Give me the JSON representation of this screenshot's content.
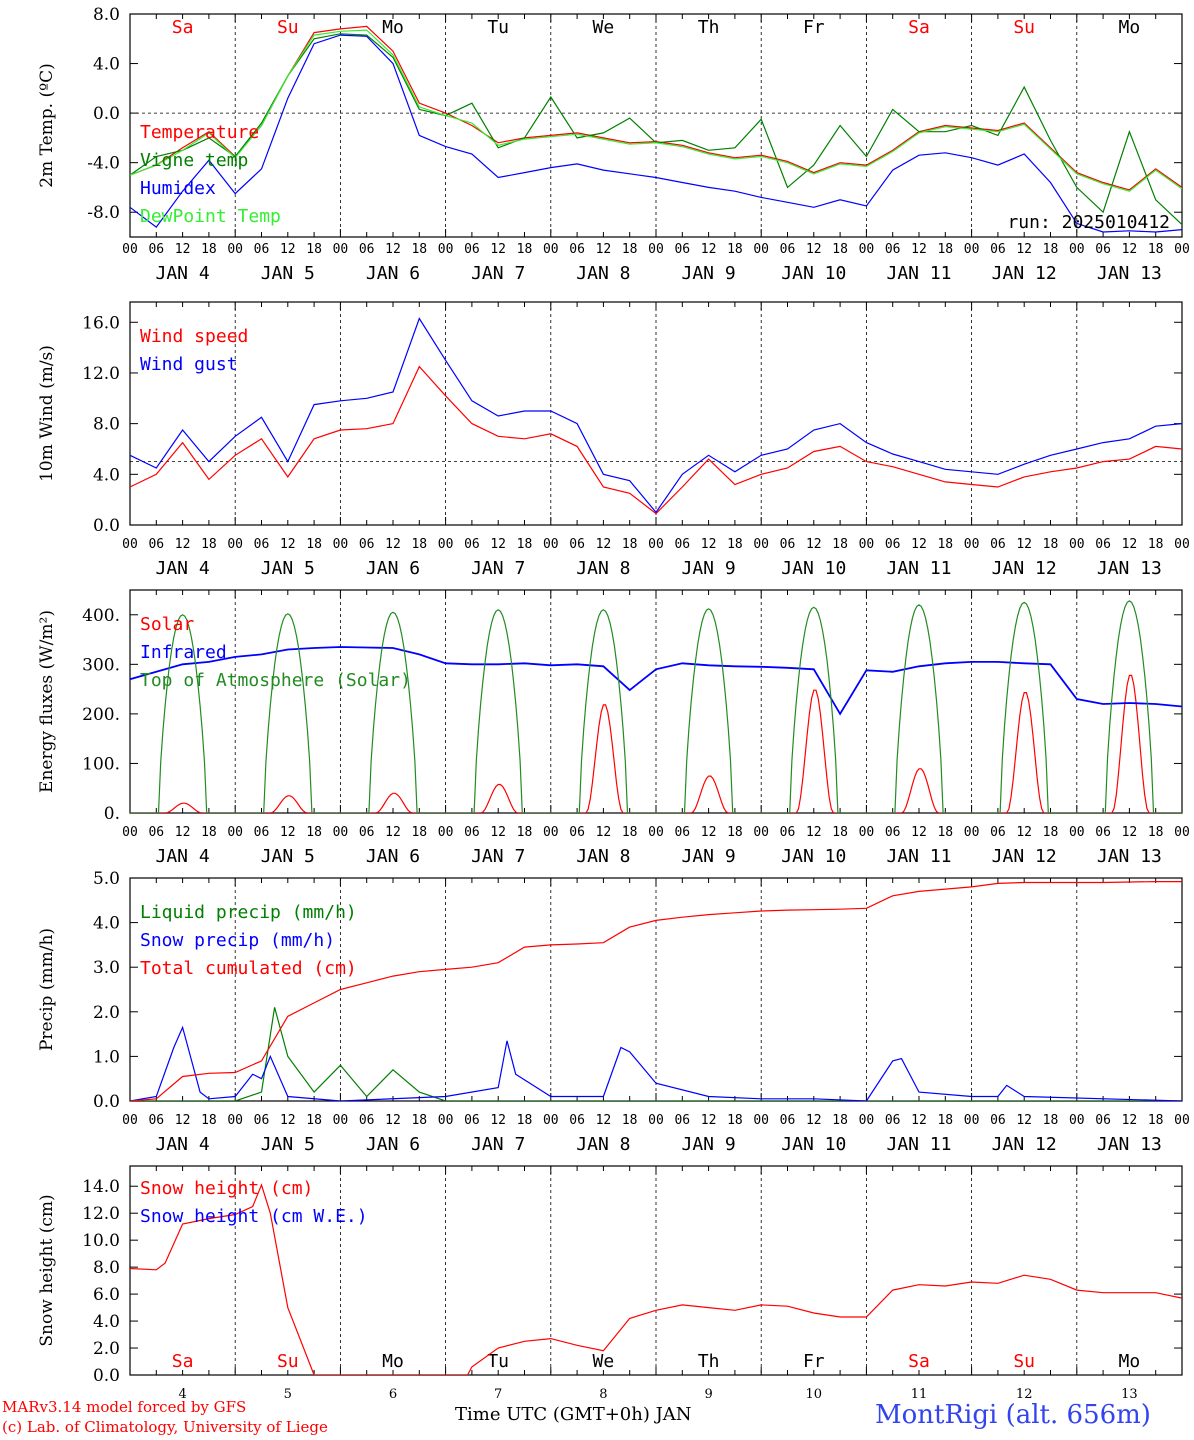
{
  "hour_ticks": [
    "00",
    "06",
    "12",
    "18"
  ],
  "end_tick": "00",
  "footer": {
    "model": "MARv3.14 model forced by GFS",
    "credit": "(c) Lab. of Climatology, University of Liege",
    "xlabel": "Time UTC (GMT+0h) JAN",
    "station": "MontRigi (alt. 656m)"
  },
  "colors": {
    "red": "#ff0000",
    "blue": "#0000ff",
    "green": "#008000",
    "lime": "#33ee33",
    "darkgreen": "#228b22"
  },
  "chart_data": [
    {
      "type": "line",
      "ylabel": "2m Temp. (ºC)",
      "ylim": [
        -10,
        8
      ],
      "yticks": [
        "8.0",
        "4.0",
        "0.0",
        "-4.0",
        "-8.0"
      ],
      "ytick_values": [
        8,
        4,
        0,
        -4,
        -8
      ],
      "ref_line": 0,
      "day_labels": [
        "JAN  4",
        "JAN  5",
        "JAN  6",
        "JAN  7",
        "JAN  8",
        "JAN  9",
        "JAN 10",
        "JAN 11",
        "JAN 12",
        "JAN 13"
      ],
      "weekdays": [
        "Sa",
        "Su",
        "Mo",
        "Tu",
        "We",
        "Th",
        "Fr",
        "Sa",
        "Su",
        "Mo"
      ],
      "weekday_colors": [
        "red",
        "red",
        "black",
        "black",
        "black",
        "black",
        "black",
        "red",
        "red",
        "black"
      ],
      "annotation": "run: 2025010412",
      "x_hours": [
        0,
        6,
        12,
        18,
        24,
        30,
        36,
        42,
        48,
        54,
        60,
        66,
        72,
        78,
        84,
        90,
        96,
        102,
        108,
        114,
        120,
        126,
        132,
        138,
        144,
        150,
        156,
        162,
        168,
        174,
        180,
        186,
        192,
        198,
        204,
        210,
        216,
        222,
        228,
        234,
        240
      ],
      "series": [
        {
          "name": "Temperature",
          "color": "red",
          "values": [
            -5,
            -4.2,
            -2.8,
            -1.5,
            -3.5,
            -1,
            3,
            6.5,
            6.8,
            7,
            5,
            0.8,
            0,
            -1,
            -2.4,
            -2,
            -1.8,
            -1.6,
            -2,
            -2.4,
            -2.3,
            -2.6,
            -3.2,
            -3.6,
            -3.4,
            -3.9,
            -4.8,
            -4,
            -4.2,
            -3,
            -1.5,
            -1,
            -1.2,
            -1.4,
            -0.8,
            -2.8,
            -4.8,
            -5.6,
            -6.2,
            -4.5,
            -6
          ]
        },
        {
          "name": "Vigne temp",
          "color": "green",
          "values": [
            -5,
            -3.5,
            -3,
            -2,
            -3.5,
            -0.8,
            3,
            6,
            6.4,
            6.3,
            4.5,
            0.3,
            -0.2,
            0.8,
            -2.8,
            -2,
            1.3,
            -2,
            -1.6,
            -0.4,
            -2.4,
            -2.2,
            -3,
            -2.8,
            -0.5,
            -6,
            -4.2,
            -1,
            -3.5,
            0.3,
            -1.5,
            -1.5,
            -1,
            -1.8,
            2.1,
            -2.2,
            -6,
            -8,
            -1.5,
            -7,
            -9
          ]
        },
        {
          "name": "Humidex",
          "color": "blue",
          "values": [
            -7.6,
            -9.2,
            -6.3,
            -3.8,
            -6.5,
            -4.5,
            1.2,
            5.6,
            6.3,
            6.2,
            4,
            -1.8,
            -2.7,
            -3.3,
            -5.2,
            -4.8,
            -4.4,
            -4.1,
            -4.6,
            -4.9,
            -5.2,
            -5.6,
            -6,
            -6.3,
            -6.8,
            -7.2,
            -7.6,
            -7,
            -7.5,
            -4.6,
            -3.4,
            -3.2,
            -3.6,
            -4.2,
            -3.3,
            -5.6,
            -8.9,
            -9.6,
            -9.5,
            -9.6,
            -9.4
          ]
        },
        {
          "name": "DewPoint Temp",
          "color": "lime",
          "values": [
            -5,
            -4.2,
            -3,
            -1.6,
            -3.6,
            -1,
            3,
            6.3,
            6.6,
            6.7,
            4.7,
            0.5,
            -0.2,
            -0.8,
            -2.6,
            -2.1,
            -1.9,
            -1.7,
            -2.1,
            -2.5,
            -2.4,
            -2.7,
            -3.3,
            -3.7,
            -3.5,
            -4,
            -4.9,
            -4.1,
            -4.3,
            -3.1,
            -1.6,
            -1.1,
            -1.3,
            -1.5,
            -0.9,
            -2.9,
            -4.9,
            -5.7,
            -6.3,
            -4.6,
            -6.1
          ]
        }
      ]
    },
    {
      "type": "line",
      "ylabel": "10m Wind (m/s)",
      "ylim": [
        0,
        17.6
      ],
      "yticks": [
        "16.0",
        "12.0",
        "8.0",
        "4.0",
        "0.0"
      ],
      "ytick_values": [
        16,
        12,
        8,
        4,
        0
      ],
      "ref_line": 5,
      "day_labels": [
        "JAN  4",
        "JAN  5",
        "JAN  6",
        "JAN  7",
        "JAN  8",
        "JAN  9",
        "JAN 10",
        "JAN 11",
        "JAN 12",
        "JAN 13"
      ],
      "x_hours": [
        0,
        6,
        12,
        18,
        24,
        30,
        36,
        42,
        48,
        54,
        60,
        66,
        72,
        78,
        84,
        90,
        96,
        102,
        108,
        114,
        120,
        126,
        132,
        138,
        144,
        150,
        156,
        162,
        168,
        174,
        180,
        186,
        192,
        198,
        204,
        210,
        216,
        222,
        228,
        234,
        240
      ],
      "series": [
        {
          "name": "Wind speed",
          "color": "red",
          "values": [
            3,
            4,
            6.5,
            3.6,
            5.5,
            6.8,
            3.8,
            6.8,
            7.5,
            7.6,
            8,
            12.5,
            10.2,
            8,
            7,
            6.8,
            7.2,
            6.2,
            3,
            2.5,
            0.9,
            3,
            5.2,
            3.2,
            4,
            4.5,
            5.8,
            6.2,
            5,
            4.6,
            4,
            3.4,
            3.2,
            3,
            3.8,
            4.2,
            4.5,
            5,
            5.2,
            6.2,
            6
          ]
        },
        {
          "name": "Wind gust",
          "color": "blue",
          "values": [
            5.5,
            4.5,
            7.5,
            5,
            7,
            8.5,
            5,
            9.5,
            9.8,
            10,
            10.5,
            16.3,
            13,
            9.8,
            8.6,
            9,
            9,
            8,
            4,
            3.5,
            1,
            4,
            5.5,
            4.2,
            5.5,
            6,
            7.5,
            8,
            6.5,
            5.6,
            5,
            4.4,
            4.2,
            4,
            4.8,
            5.5,
            6,
            6.5,
            6.8,
            7.8,
            8
          ]
        }
      ]
    },
    {
      "type": "line",
      "ylabel": "Energy fluxes (W/m²)",
      "ylim": [
        0,
        450
      ],
      "yticks": [
        "400.",
        "300.",
        "200.",
        "100.",
        "0."
      ],
      "ytick_values": [
        400,
        300,
        200,
        100,
        0
      ],
      "day_labels": [
        "JAN  4",
        "JAN  5",
        "JAN  6",
        "JAN  7",
        "JAN  8",
        "JAN  9",
        "JAN 10",
        "JAN 11",
        "JAN 12",
        "JAN 13"
      ],
      "series": [
        {
          "name": "Solar",
          "color": "red",
          "peaks": [
            20,
            35,
            40,
            58,
            220,
            75,
            250,
            90,
            245,
            280
          ]
        },
        {
          "name": "Infrared",
          "color": "blue",
          "x_hours": [
            0,
            6,
            12,
            18,
            24,
            30,
            36,
            42,
            48,
            54,
            60,
            66,
            72,
            78,
            84,
            90,
            96,
            102,
            108,
            114,
            120,
            126,
            132,
            138,
            144,
            150,
            156,
            162,
            168,
            174,
            180,
            186,
            192,
            198,
            204,
            210,
            216,
            222,
            228,
            234,
            240
          ],
          "values": [
            270,
            285,
            300,
            305,
            315,
            320,
            330,
            333,
            335,
            334,
            333,
            320,
            302,
            300,
            300,
            302,
            298,
            300,
            296,
            248,
            290,
            302,
            298,
            296,
            295,
            293,
            290,
            200,
            288,
            285,
            296,
            302,
            305,
            305,
            302,
            300,
            230,
            220,
            222,
            220,
            215
          ]
        },
        {
          "name": "Top of Atmosphere (Solar)",
          "color": "darkgreen",
          "peaks": [
            400,
            402,
            405,
            410,
            410,
            412,
            415,
            420,
            425,
            428
          ]
        }
      ]
    },
    {
      "type": "line",
      "ylabel": "Precip (mm/h)",
      "ylim": [
        0,
        5
      ],
      "yticks": [
        "5.0",
        "4.0",
        "3.0",
        "2.0",
        "1.0",
        "0.0"
      ],
      "ytick_values": [
        5,
        4,
        3,
        2,
        1,
        0
      ],
      "day_labels": [
        "JAN  4",
        "JAN  5",
        "JAN  6",
        "JAN  7",
        "JAN  8",
        "JAN  9",
        "JAN 10",
        "JAN 11",
        "JAN 12",
        "JAN 13"
      ],
      "series": [
        {
          "name": "Liquid precip (mm/h)",
          "color": "green",
          "x_hours": [
            0,
            6,
            12,
            18,
            24,
            30,
            33,
            36,
            42,
            48,
            54,
            60,
            66,
            72,
            78,
            84,
            90,
            240
          ],
          "values": [
            0,
            0,
            0,
            0,
            0,
            0.2,
            2.1,
            1,
            0.2,
            0.8,
            0.1,
            0.7,
            0.2,
            0,
            0,
            0,
            0,
            0
          ]
        },
        {
          "name": "Snow precip (mm/h)",
          "color": "blue",
          "x_hours": [
            0,
            6,
            10,
            12,
            16,
            18,
            24,
            28,
            30,
            32,
            36,
            48,
            72,
            84,
            86,
            88,
            96,
            108,
            112,
            114,
            120,
            132,
            144,
            156,
            168,
            174,
            176,
            180,
            192,
            198,
            200,
            204,
            240
          ],
          "values": [
            0,
            0.1,
            1.2,
            1.65,
            0.2,
            0.05,
            0.1,
            0.6,
            0.5,
            1,
            0.1,
            0,
            0.1,
            0.3,
            1.35,
            0.6,
            0.1,
            0.1,
            1.2,
            1.1,
            0.4,
            0.1,
            0.05,
            0.05,
            0,
            0.9,
            0.95,
            0.2,
            0.1,
            0.1,
            0.35,
            0.1,
            0
          ]
        },
        {
          "name": "Total cumulated (cm)",
          "color": "red",
          "x_hours": [
            0,
            6,
            12,
            18,
            24,
            30,
            36,
            42,
            48,
            54,
            60,
            66,
            72,
            78,
            84,
            90,
            96,
            102,
            108,
            114,
            120,
            126,
            132,
            138,
            144,
            150,
            156,
            162,
            168,
            174,
            180,
            186,
            192,
            198,
            204,
            210,
            216,
            222,
            228,
            234,
            240
          ],
          "values": [
            0,
            0.05,
            0.55,
            0.62,
            0.64,
            0.9,
            1.9,
            2.2,
            2.5,
            2.65,
            2.8,
            2.9,
            2.95,
            3,
            3.1,
            3.45,
            3.5,
            3.52,
            3.55,
            3.9,
            4.05,
            4.12,
            4.18,
            4.22,
            4.26,
            4.28,
            4.29,
            4.3,
            4.32,
            4.6,
            4.7,
            4.75,
            4.8,
            4.88,
            4.9,
            4.9,
            4.9,
            4.9,
            4.91,
            4.92,
            4.92
          ]
        }
      ]
    },
    {
      "type": "line",
      "ylabel": "Snow height (cm)",
      "ylim": [
        0,
        15.5
      ],
      "yticks": [
        "14.0",
        "12.0",
        "10.0",
        "8.0",
        "6.0",
        "4.0",
        "2.0",
        "0.0"
      ],
      "ytick_values": [
        14,
        12,
        10,
        8,
        6,
        4,
        2,
        0
      ],
      "x_labels": [
        "4",
        "5",
        "6",
        "7",
        "8",
        "9",
        "10",
        "11",
        "12",
        "13"
      ],
      "weekdays": [
        "Sa",
        "Su",
        "Mo",
        "Tu",
        "We",
        "Th",
        "Fr",
        "Sa",
        "Su",
        "Mo"
      ],
      "weekday_colors": [
        "red",
        "red",
        "black",
        "black",
        "black",
        "black",
        "black",
        "red",
        "red",
        "black"
      ],
      "x_hours": [
        0,
        6,
        8,
        12,
        18,
        24,
        28,
        30,
        32,
        36,
        42,
        48,
        60,
        72,
        77,
        78,
        84,
        90,
        96,
        102,
        108,
        114,
        120,
        126,
        132,
        138,
        144,
        150,
        156,
        162,
        168,
        174,
        180,
        186,
        192,
        198,
        204,
        210,
        216,
        222,
        228,
        234,
        240
      ],
      "series": [
        {
          "name": "Snow height (cm)",
          "color": "red",
          "values": [
            7.9,
            7.8,
            8.3,
            11.2,
            11.6,
            11.9,
            12.5,
            14.1,
            12,
            5,
            0,
            0,
            0,
            0,
            0,
            0.6,
            2,
            2.5,
            2.7,
            2.2,
            1.8,
            4.2,
            4.8,
            5.2,
            5,
            4.8,
            5.2,
            5.1,
            4.6,
            4.3,
            4.3,
            6.3,
            6.7,
            6.6,
            6.9,
            6.8,
            7.4,
            7.1,
            6.3,
            6.1,
            6.1,
            6.1,
            5.7
          ]
        },
        {
          "name": "Snow height (cm W.E.)",
          "color": "blue",
          "values": []
        }
      ]
    }
  ]
}
